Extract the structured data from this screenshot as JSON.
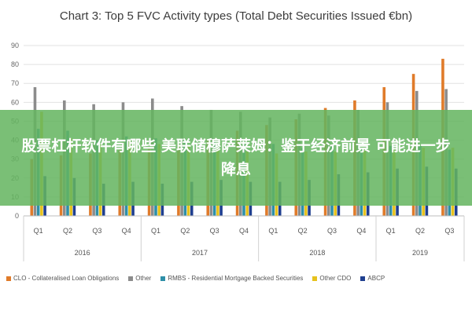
{
  "chart_data": {
    "type": "bar",
    "title": "Chart 3: Top 5 FVC Activity types (Total Debt Securities Issued €bn)",
    "years": [
      {
        "label": "2016",
        "quarters": [
          "Q1",
          "Q2",
          "Q3",
          "Q4"
        ]
      },
      {
        "label": "2017",
        "quarters": [
          "Q1",
          "Q2",
          "Q3",
          "Q4"
        ]
      },
      {
        "label": "2018",
        "quarters": [
          "Q1",
          "Q2",
          "Q3",
          "Q4"
        ]
      },
      {
        "label": "2019",
        "quarters": [
          "Q1",
          "Q2",
          "Q3"
        ]
      }
    ],
    "categories": [
      "Q1",
      "Q2",
      "Q3",
      "Q4",
      "Q1",
      "Q2",
      "Q3",
      "Q4",
      "Q1",
      "Q2",
      "Q3",
      "Q4",
      "Q1",
      "Q2",
      "Q3"
    ],
    "ylim": [
      0,
      90
    ],
    "yticks": [
      0,
      10,
      20,
      30,
      40,
      50,
      60,
      70,
      80,
      90
    ],
    "grid": true,
    "legend_position": "bottom",
    "series": [
      {
        "name": "CLO - Collateralised Loan Obligations",
        "color": "#e07b2a",
        "values": [
          30,
          32,
          33,
          35,
          36,
          38,
          40,
          45,
          48,
          51,
          57,
          61,
          68,
          75,
          83
        ]
      },
      {
        "name": "Other",
        "color": "#8c8c8c",
        "values": [
          68,
          61,
          59,
          60,
          62,
          58,
          56,
          55,
          52,
          54,
          53,
          56,
          60,
          66,
          67
        ]
      },
      {
        "name": "RMBS - Residential Mortgage Backed Securities",
        "color": "#2e8fa8",
        "values": [
          46,
          45,
          40,
          42,
          41,
          40,
          39,
          38,
          38,
          36,
          37,
          36,
          37,
          37,
          35
        ]
      },
      {
        "name": "Other CDO",
        "color": "#e7c21d",
        "values": [
          55,
          41,
          38,
          40,
          38,
          37,
          35,
          34,
          33,
          34,
          34,
          35,
          35,
          36,
          36
        ]
      },
      {
        "name": "ABCP",
        "color": "#1f3f8f",
        "values": [
          21,
          20,
          17,
          18,
          17,
          18,
          19,
          18,
          18,
          19,
          22,
          23,
          25,
          26,
          25
        ]
      }
    ]
  },
  "overlay": {
    "text": "股票杠杆软件有哪些 美联储穆萨莱姆：鉴于经济前景 可能进一步降息"
  }
}
